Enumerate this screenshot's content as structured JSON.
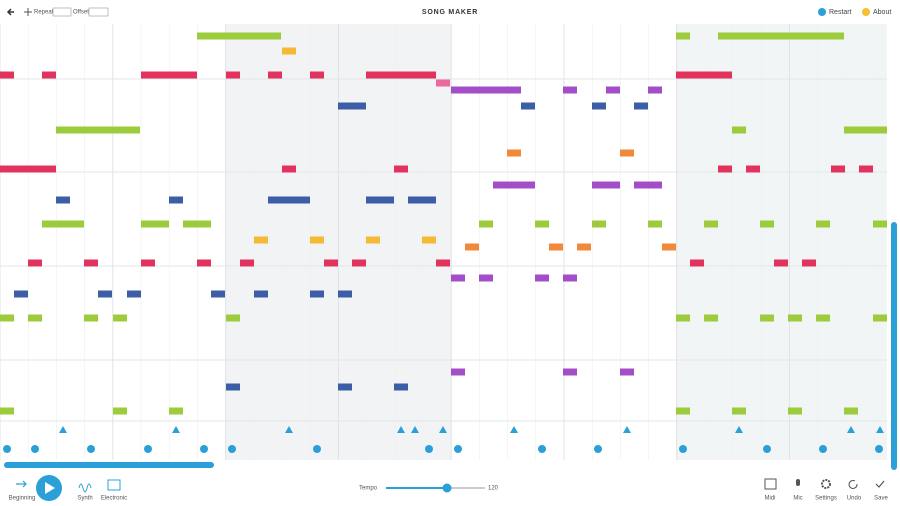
{
  "header": {
    "title": "SONG MAKER",
    "repeat_label": "Repeat",
    "offset_label": "Offset",
    "restart": "Restart",
    "about": "About"
  },
  "footer": {
    "beginning": "Beginning",
    "synth": "Synth",
    "electronic": "Electronic",
    "tempo_label": "Tempo",
    "tempo_value": "120",
    "midi": "Midi",
    "mic": "Mic",
    "settings": "Settings",
    "undo": "Undo",
    "save": "Save"
  }
}
